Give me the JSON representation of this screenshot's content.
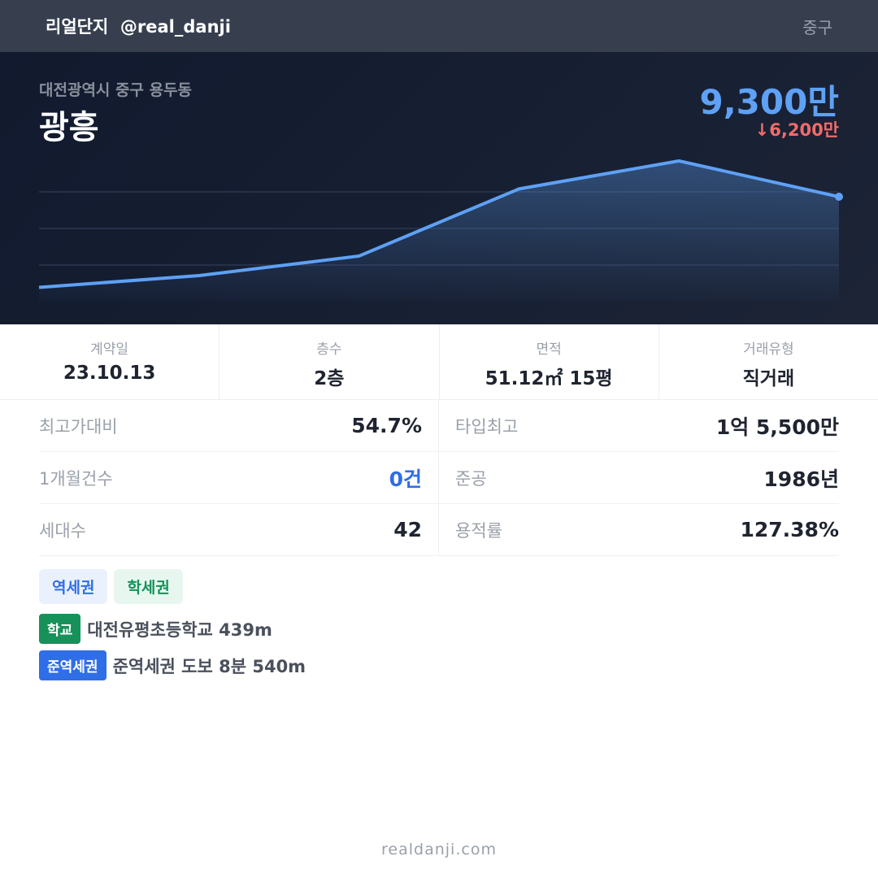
{
  "header": {
    "brand": "리얼단지  @real_danji",
    "region": "중구"
  },
  "hero": {
    "address": "대전광역시 중구 용두동",
    "name": "광흥",
    "price": "9,300만",
    "diff": "↓6,200만",
    "line_color": "#5ea1f5"
  },
  "chart_data": {
    "type": "area",
    "values": [
      1200,
      2250,
      4000,
      10000,
      12500,
      9300
    ],
    "grid": true
  },
  "stats": [
    {
      "label": "계약일",
      "value": "23.10.13"
    },
    {
      "label": "층수",
      "value": "2층"
    },
    {
      "label": "면적",
      "value": "51.12㎡ 15평"
    },
    {
      "label": "거래유형",
      "value": "직거래"
    }
  ],
  "details": [
    {
      "label": "최고가대비",
      "value": "54.7%"
    },
    {
      "label": "타입최고",
      "value": "1억 5,500만"
    },
    {
      "label": "1개월건수",
      "value": "0건"
    },
    {
      "label": "준공",
      "value": "1986년"
    },
    {
      "label": "세대수",
      "value": "42"
    },
    {
      "label": "용적률",
      "value": "127.38%"
    }
  ],
  "tags": [
    "역세권",
    "학세권"
  ],
  "pois": [
    {
      "badge": "학교",
      "text": "대전유평초등학교 439m"
    },
    {
      "badge": "준역세권",
      "text": "준역세권 도보 8분 540m"
    }
  ],
  "footer": "realdanji.com"
}
